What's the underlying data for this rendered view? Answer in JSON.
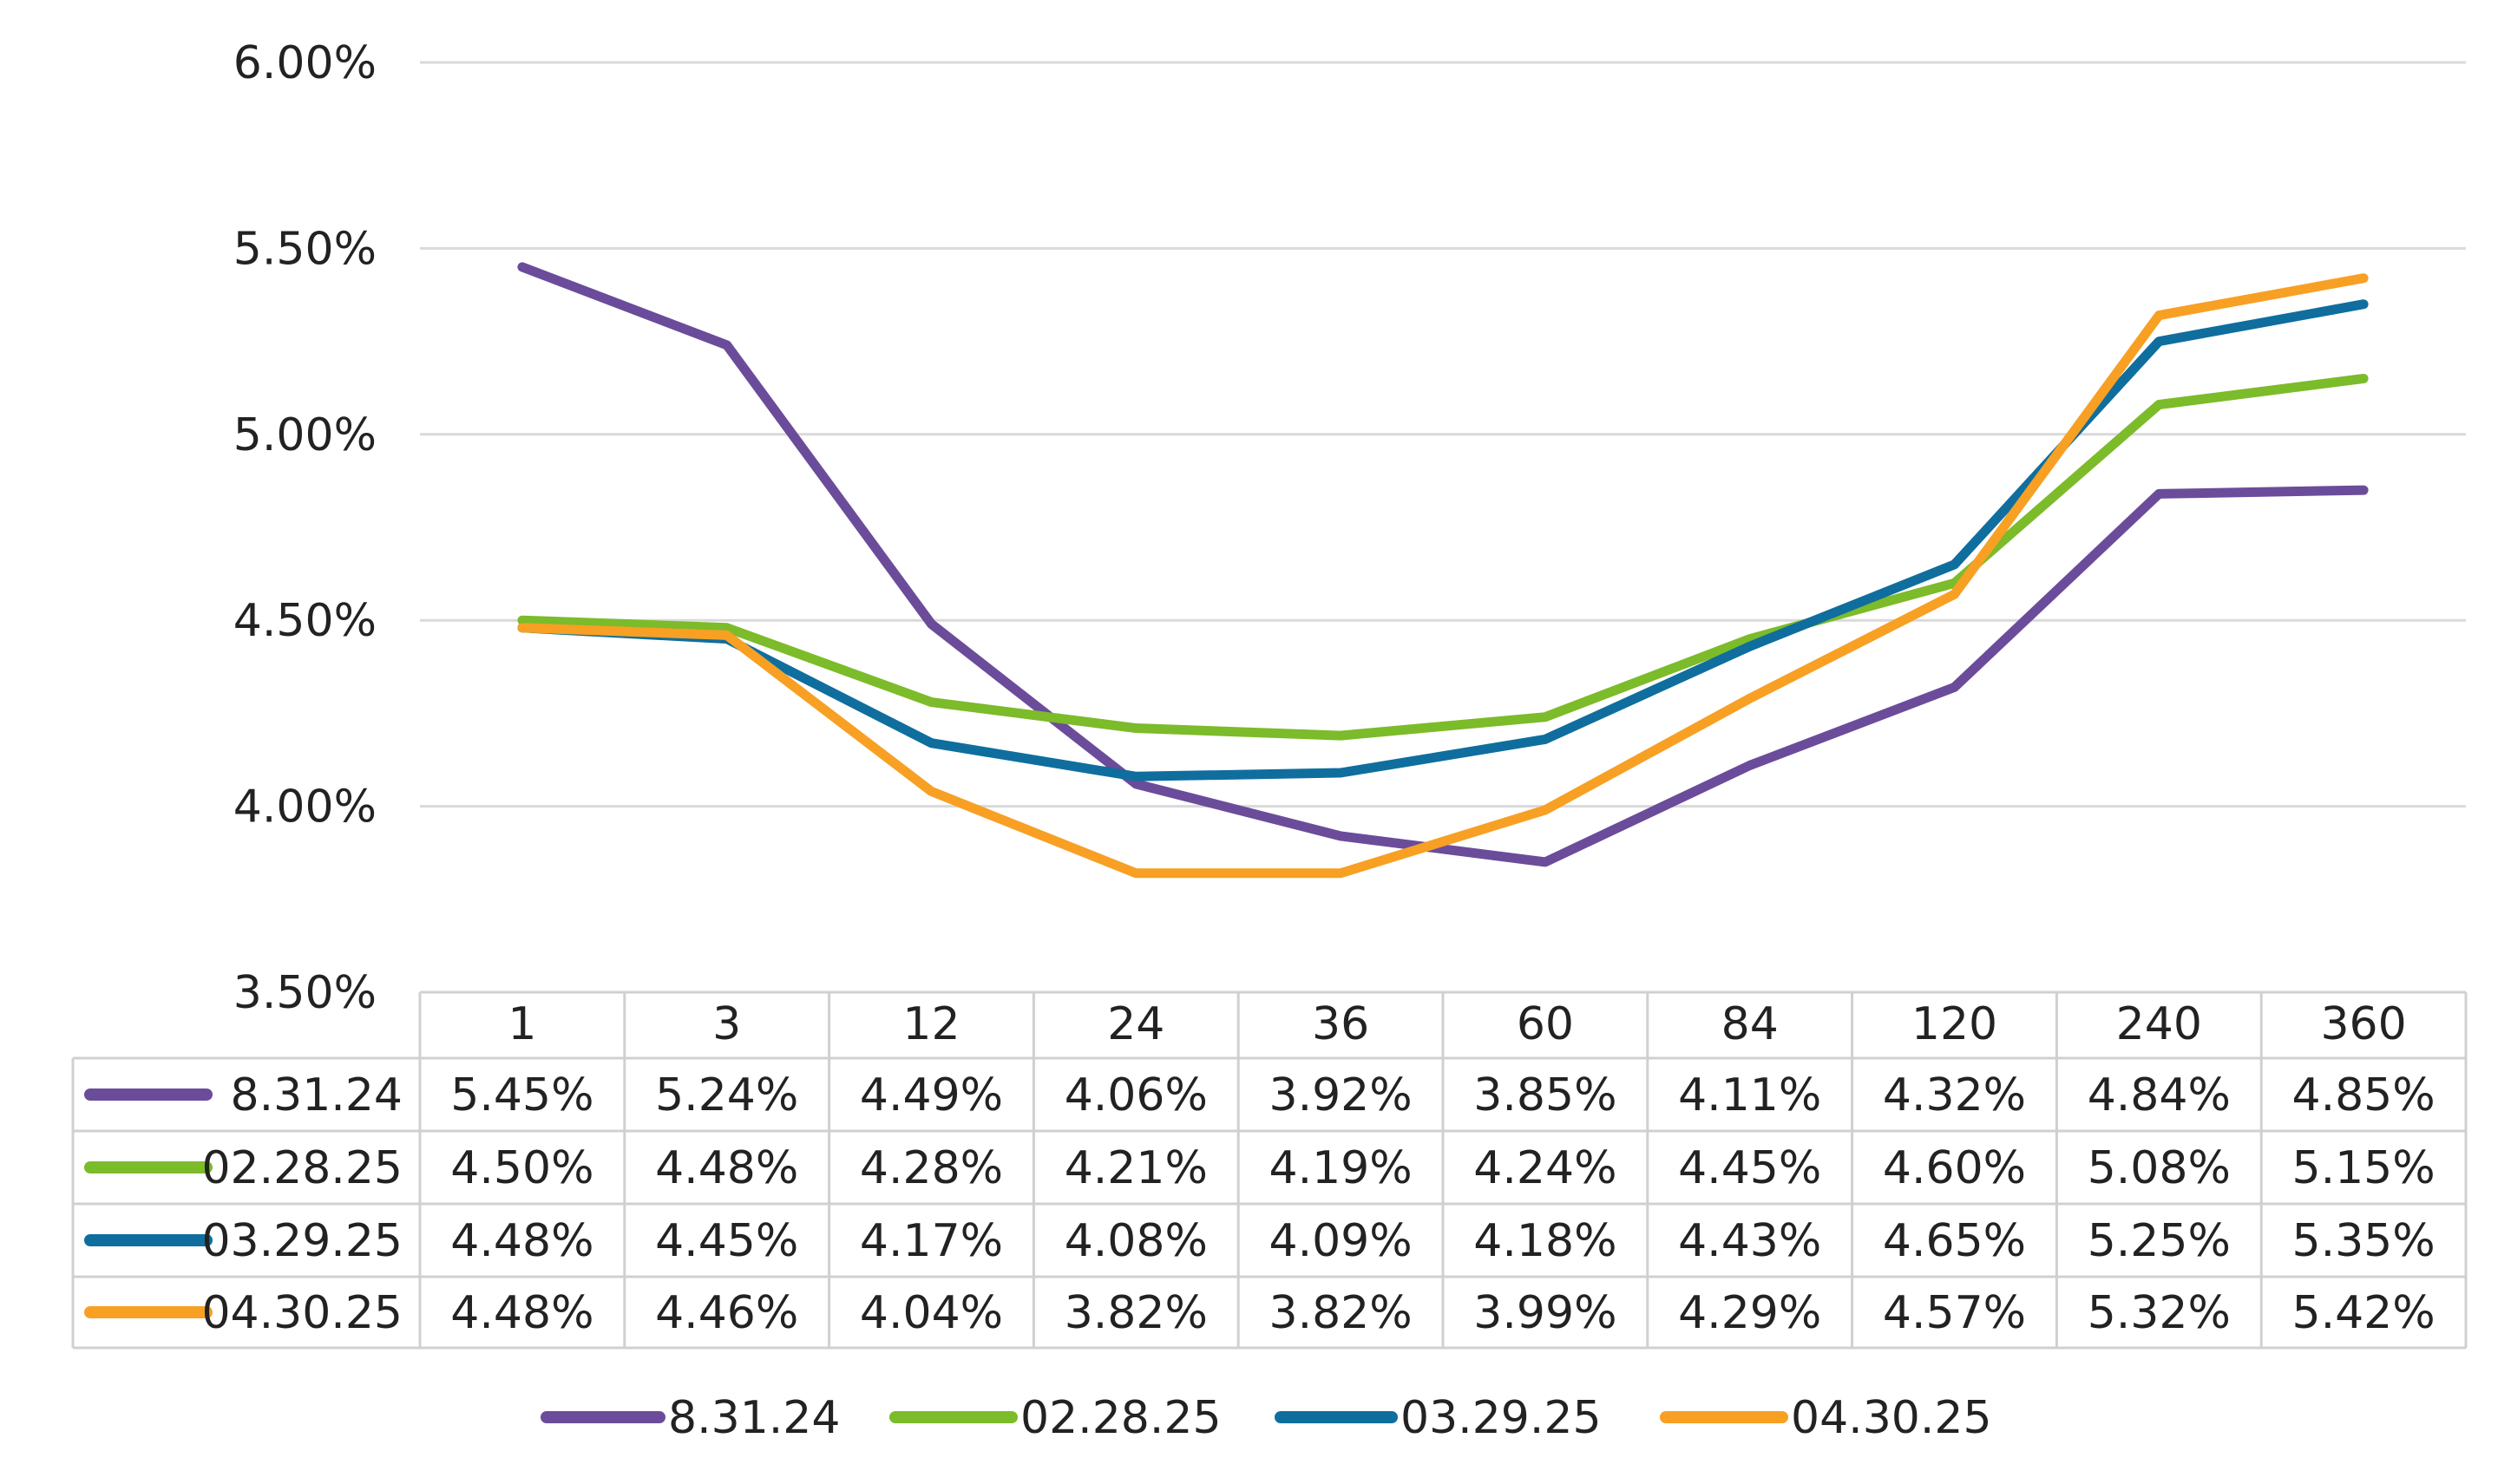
{
  "chart_data": {
    "type": "line",
    "title": "",
    "xlabel": "",
    "ylabel": "",
    "categories": [
      "1",
      "3",
      "12",
      "24",
      "36",
      "60",
      "84",
      "120",
      "240",
      "360"
    ],
    "ylim": [
      3.5,
      6.0
    ],
    "yticks": [
      "3.50%",
      "4.00%",
      "4.50%",
      "5.00%",
      "5.50%",
      "6.00%"
    ],
    "grid": true,
    "legend_position": "bottom",
    "data_table": true,
    "series": [
      {
        "name": "8.31.24",
        "color": "#6b4c9a",
        "values": [
          5.45,
          5.24,
          4.49,
          4.06,
          3.92,
          3.85,
          4.11,
          4.32,
          4.84,
          4.85
        ],
        "labels": [
          "5.45%",
          "5.24%",
          "4.49%",
          "4.06%",
          "3.92%",
          "3.85%",
          "4.11%",
          "4.32%",
          "4.84%",
          "4.85%"
        ]
      },
      {
        "name": "02.28.25",
        "color": "#7cbb2a",
        "values": [
          4.5,
          4.48,
          4.28,
          4.21,
          4.19,
          4.24,
          4.45,
          4.6,
          5.08,
          5.15
        ],
        "labels": [
          "4.50%",
          "4.48%",
          "4.28%",
          "4.21%",
          "4.19%",
          "4.24%",
          "4.45%",
          "4.60%",
          "5.08%",
          "5.15%"
        ]
      },
      {
        "name": "03.29.25",
        "color": "#0f6e9e",
        "values": [
          4.48,
          4.45,
          4.17,
          4.08,
          4.09,
          4.18,
          4.43,
          4.65,
          5.25,
          5.35
        ],
        "labels": [
          "4.48%",
          "4.45%",
          "4.17%",
          "4.08%",
          "4.09%",
          "4.18%",
          "4.43%",
          "4.65%",
          "5.25%",
          "5.35%"
        ]
      },
      {
        "name": "04.30.25",
        "color": "#f7a024",
        "values": [
          4.48,
          4.46,
          4.04,
          3.82,
          3.82,
          3.99,
          4.29,
          4.57,
          5.32,
          5.42
        ],
        "labels": [
          "4.48%",
          "4.46%",
          "4.04%",
          "3.82%",
          "3.82%",
          "3.99%",
          "4.29%",
          "4.57%",
          "5.32%",
          "5.42%"
        ]
      }
    ]
  }
}
